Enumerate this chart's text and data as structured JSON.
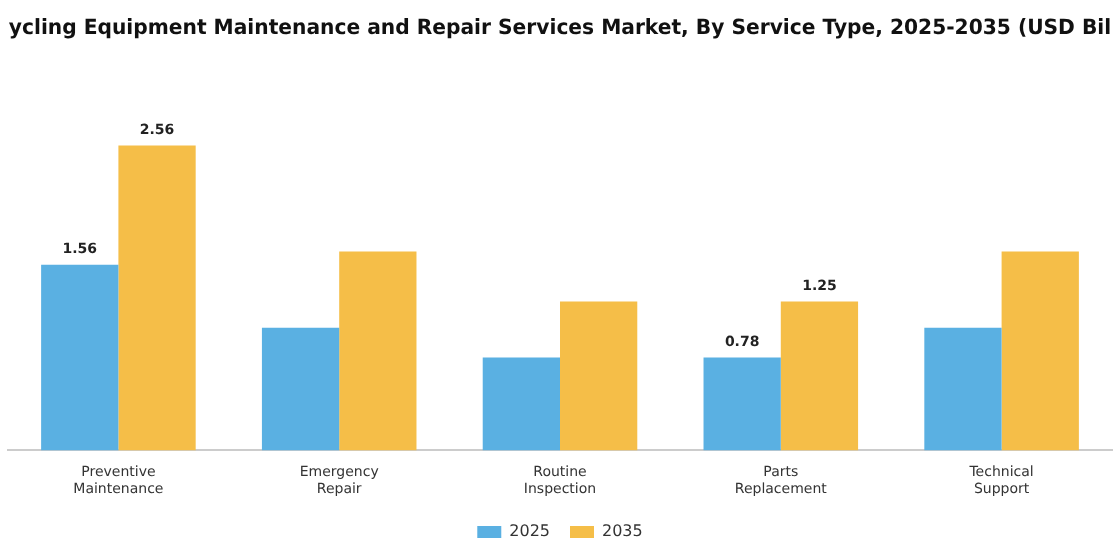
{
  "chart_data": {
    "type": "bar",
    "title": "ycling Equipment Maintenance and Repair Services Market, By Service Type, 2025-2035 (USD Bil",
    "categories": [
      "Preventive Maintenance",
      "Emergency Repair",
      "Routine Inspection",
      "Parts Replacement",
      "Technical Support"
    ],
    "series": [
      {
        "name": "2025",
        "color": "#5ab0e2",
        "values": [
          1.56,
          1.03,
          0.78,
          0.78,
          1.03
        ],
        "value_labels": [
          "1.56",
          null,
          null,
          "0.78",
          null
        ]
      },
      {
        "name": "2035",
        "color": "#f5be48",
        "values": [
          2.56,
          1.67,
          1.25,
          1.25,
          1.67
        ],
        "value_labels": [
          "2.56",
          null,
          null,
          "1.25",
          null
        ]
      }
    ],
    "legend": "bottom",
    "grid": false
  }
}
